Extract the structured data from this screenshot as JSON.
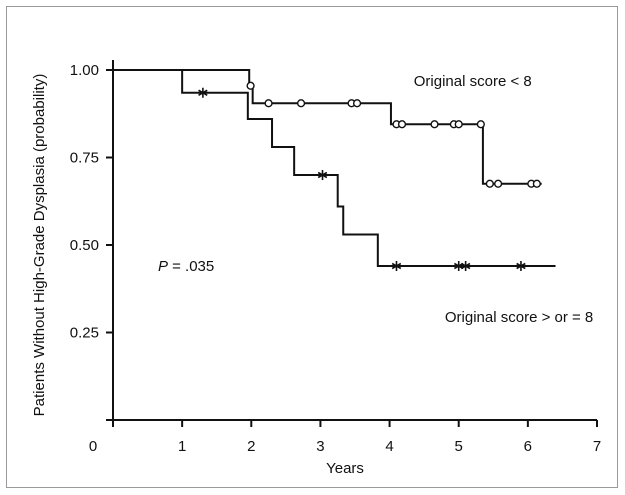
{
  "chart_data": {
    "type": "line",
    "xlabel": "Years",
    "ylabel": "Patients Without High-Grade Dysplasia (probability)",
    "xlim": [
      0,
      7
    ],
    "ylim": [
      0,
      1.0
    ],
    "x_ticks": [
      0,
      1,
      2,
      3,
      4,
      5,
      6,
      7
    ],
    "x_tick_labels": [
      "0",
      "1",
      "2",
      "3",
      "4",
      "5",
      "6",
      "7"
    ],
    "y_ticks": [
      0.25,
      0.5,
      0.75,
      1.0
    ],
    "y_tick_labels": [
      "0.25",
      "0.50",
      "0.75",
      "1.00"
    ],
    "grid": false,
    "annotation": {
      "p_label": "P",
      "p_value": " = .035",
      "x": 0.65,
      "y": 0.44
    },
    "series": [
      {
        "name": "Original score < 8",
        "label_pos": {
          "x": 4.35,
          "y": 0.955
        },
        "marker": "circle",
        "steps": [
          [
            0,
            1.0
          ],
          [
            1.97,
            0.955
          ],
          [
            2.02,
            0.905
          ],
          [
            4.02,
            0.845
          ],
          [
            5.35,
            0.675
          ],
          [
            6.2,
            0.675
          ]
        ],
        "censored": [
          [
            1.99,
            0.955
          ],
          [
            2.25,
            0.905
          ],
          [
            2.72,
            0.905
          ],
          [
            3.45,
            0.905
          ],
          [
            3.53,
            0.905
          ],
          [
            4.1,
            0.845
          ],
          [
            4.18,
            0.845
          ],
          [
            4.65,
            0.845
          ],
          [
            4.93,
            0.845
          ],
          [
            5.0,
            0.845
          ],
          [
            5.32,
            0.845
          ],
          [
            5.45,
            0.675
          ],
          [
            5.57,
            0.675
          ],
          [
            6.05,
            0.675
          ],
          [
            6.13,
            0.675
          ]
        ]
      },
      {
        "name": "Original score > or = 8",
        "label_pos": {
          "x": 4.8,
          "y": 0.28
        },
        "marker": "asterisk",
        "steps": [
          [
            0,
            1.0
          ],
          [
            1.0,
            0.935
          ],
          [
            1.95,
            0.86
          ],
          [
            2.3,
            0.78
          ],
          [
            2.62,
            0.7
          ],
          [
            3.25,
            0.61
          ],
          [
            3.33,
            0.53
          ],
          [
            3.83,
            0.44
          ],
          [
            6.4,
            0.44
          ]
        ],
        "censored": [
          [
            1.3,
            0.935
          ],
          [
            3.03,
            0.7
          ],
          [
            4.1,
            0.44
          ],
          [
            5.0,
            0.44
          ],
          [
            5.1,
            0.44
          ],
          [
            5.9,
            0.44
          ]
        ]
      }
    ]
  }
}
